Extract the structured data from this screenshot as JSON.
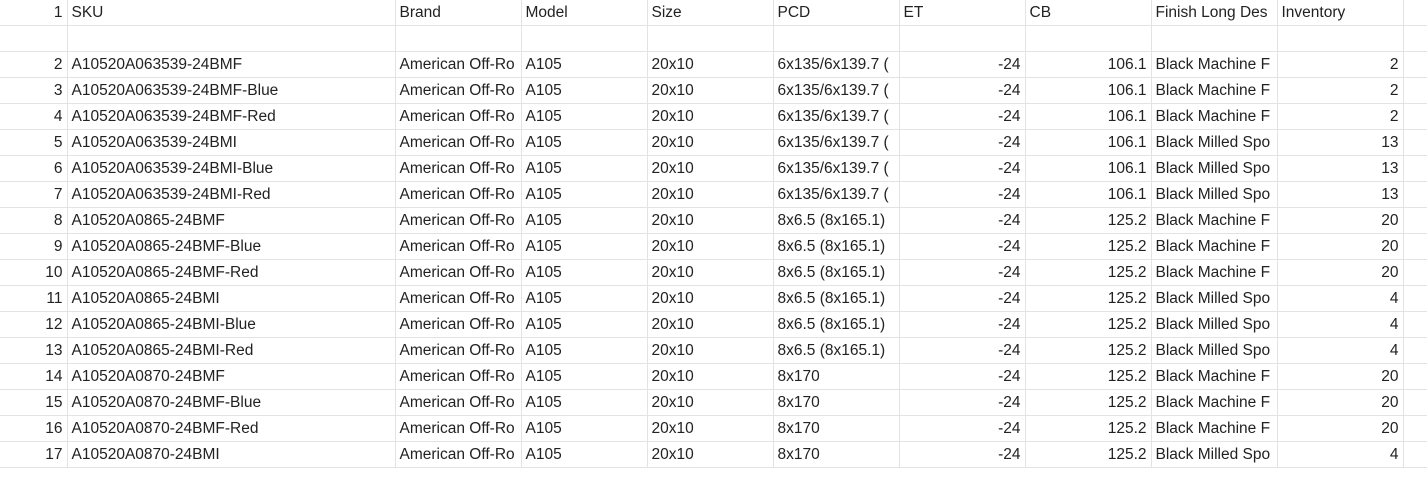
{
  "header": {
    "row_number": "1",
    "columns": [
      "SKU",
      "Brand",
      "Model",
      "Size",
      "PCD",
      "ET",
      "CB",
      "Finish Long Des",
      "Inventory"
    ]
  },
  "rows": [
    {
      "n": "2",
      "sku": "A10520A063539-24BMF",
      "brand": "American Off-Ro",
      "model": "A105",
      "size": "20x10",
      "pcd": "6x135/6x139.7 (",
      "et": "-24",
      "cb": "106.1",
      "finish": "Black Machine F",
      "inv": "2"
    },
    {
      "n": "3",
      "sku": "A10520A063539-24BMF-Blue",
      "brand": "American Off-Ro",
      "model": "A105",
      "size": "20x10",
      "pcd": "6x135/6x139.7 (",
      "et": "-24",
      "cb": "106.1",
      "finish": "Black Machine F",
      "inv": "2"
    },
    {
      "n": "4",
      "sku": "A10520A063539-24BMF-Red",
      "brand": "American Off-Ro",
      "model": "A105",
      "size": "20x10",
      "pcd": "6x135/6x139.7 (",
      "et": "-24",
      "cb": "106.1",
      "finish": "Black Machine F",
      "inv": "2"
    },
    {
      "n": "5",
      "sku": "A10520A063539-24BMI",
      "brand": "American Off-Ro",
      "model": "A105",
      "size": "20x10",
      "pcd": "6x135/6x139.7 (",
      "et": "-24",
      "cb": "106.1",
      "finish": "Black Milled Spo",
      "inv": "13"
    },
    {
      "n": "6",
      "sku": "A10520A063539-24BMI-Blue",
      "brand": "American Off-Ro",
      "model": "A105",
      "size": "20x10",
      "pcd": "6x135/6x139.7 (",
      "et": "-24",
      "cb": "106.1",
      "finish": "Black Milled Spo",
      "inv": "13"
    },
    {
      "n": "7",
      "sku": "A10520A063539-24BMI-Red",
      "brand": "American Off-Ro",
      "model": "A105",
      "size": "20x10",
      "pcd": "6x135/6x139.7 (",
      "et": "-24",
      "cb": "106.1",
      "finish": "Black Milled Spo",
      "inv": "13"
    },
    {
      "n": "8",
      "sku": "A10520A0865-24BMF",
      "brand": "American Off-Ro",
      "model": "A105",
      "size": "20x10",
      "pcd": "8x6.5 (8x165.1)",
      "et": "-24",
      "cb": "125.2",
      "finish": "Black Machine F",
      "inv": "20"
    },
    {
      "n": "9",
      "sku": "A10520A0865-24BMF-Blue",
      "brand": "American Off-Ro",
      "model": "A105",
      "size": "20x10",
      "pcd": "8x6.5 (8x165.1)",
      "et": "-24",
      "cb": "125.2",
      "finish": "Black Machine F",
      "inv": "20"
    },
    {
      "n": "10",
      "sku": "A10520A0865-24BMF-Red",
      "brand": "American Off-Ro",
      "model": "A105",
      "size": "20x10",
      "pcd": "8x6.5 (8x165.1)",
      "et": "-24",
      "cb": "125.2",
      "finish": "Black Machine F",
      "inv": "20"
    },
    {
      "n": "11",
      "sku": "A10520A0865-24BMI",
      "brand": "American Off-Ro",
      "model": "A105",
      "size": "20x10",
      "pcd": "8x6.5 (8x165.1)",
      "et": "-24",
      "cb": "125.2",
      "finish": "Black Milled Spo",
      "inv": "4"
    },
    {
      "n": "12",
      "sku": "A10520A0865-24BMI-Blue",
      "brand": "American Off-Ro",
      "model": "A105",
      "size": "20x10",
      "pcd": "8x6.5 (8x165.1)",
      "et": "-24",
      "cb": "125.2",
      "finish": "Black Milled Spo",
      "inv": "4"
    },
    {
      "n": "13",
      "sku": "A10520A0865-24BMI-Red",
      "brand": "American Off-Ro",
      "model": "A105",
      "size": "20x10",
      "pcd": "8x6.5 (8x165.1)",
      "et": "-24",
      "cb": "125.2",
      "finish": "Black Milled Spo",
      "inv": "4"
    },
    {
      "n": "14",
      "sku": "A10520A0870-24BMF",
      "brand": "American Off-Ro",
      "model": "A105",
      "size": "20x10",
      "pcd": "8x170",
      "et": "-24",
      "cb": "125.2",
      "finish": "Black Machine F",
      "inv": "20"
    },
    {
      "n": "15",
      "sku": "A10520A0870-24BMF-Blue",
      "brand": "American Off-Ro",
      "model": "A105",
      "size": "20x10",
      "pcd": "8x170",
      "et": "-24",
      "cb": "125.2",
      "finish": "Black Machine F",
      "inv": "20"
    },
    {
      "n": "16",
      "sku": "A10520A0870-24BMF-Red",
      "brand": "American Off-Ro",
      "model": "A105",
      "size": "20x10",
      "pcd": "8x170",
      "et": "-24",
      "cb": "125.2",
      "finish": "Black Machine F",
      "inv": "20"
    },
    {
      "n": "17",
      "sku": "A10520A0870-24BMI",
      "brand": "American Off-Ro",
      "model": "A105",
      "size": "20x10",
      "pcd": "8x170",
      "et": "-24",
      "cb": "125.2",
      "finish": "Black Milled Spo",
      "inv": "4"
    }
  ],
  "colors": {
    "gridline": "#e2e3e3",
    "text": "#222222",
    "background": "#ffffff"
  }
}
